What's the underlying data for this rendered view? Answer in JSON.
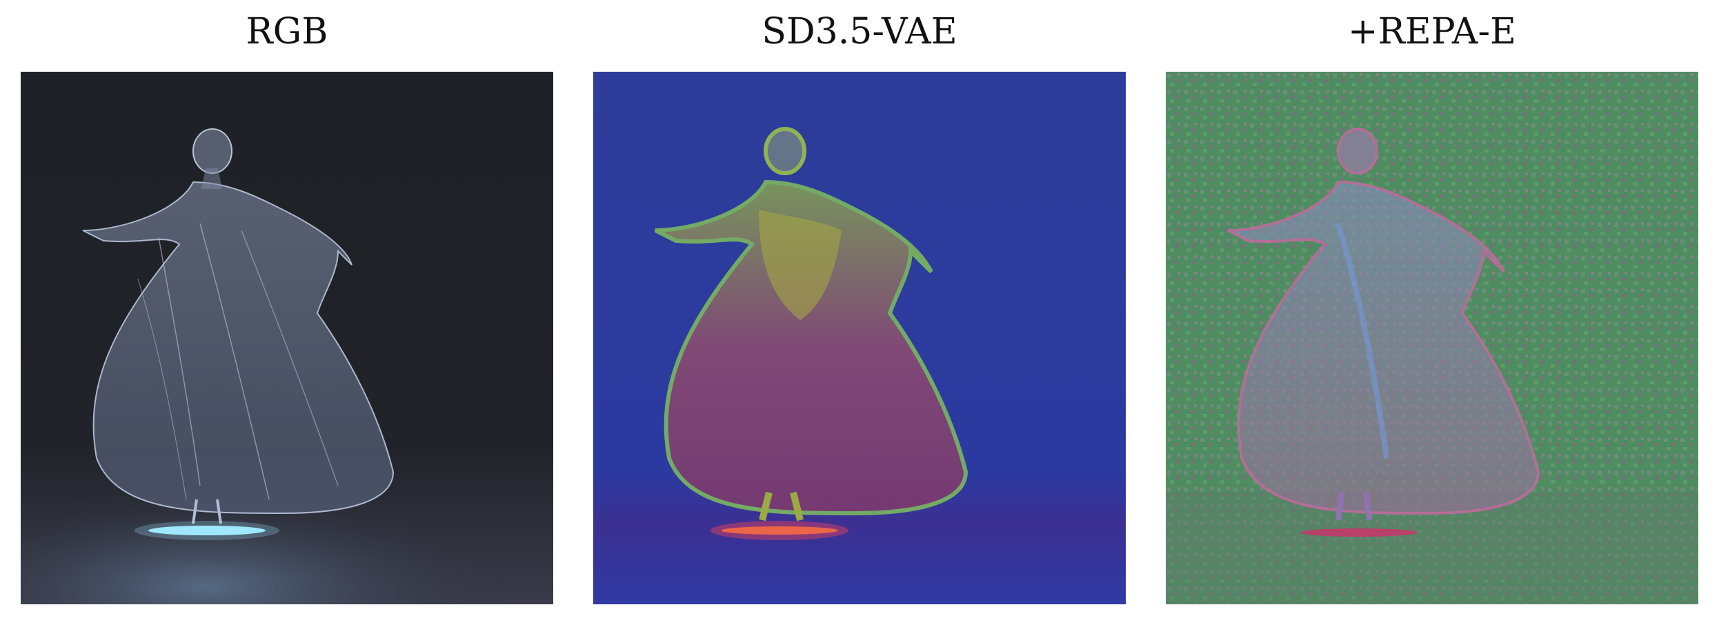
{
  "figure": {
    "panels": [
      {
        "title": "RGB"
      },
      {
        "title": "SD3.5-VAE"
      },
      {
        "title": "+REPA-E"
      }
    ]
  }
}
